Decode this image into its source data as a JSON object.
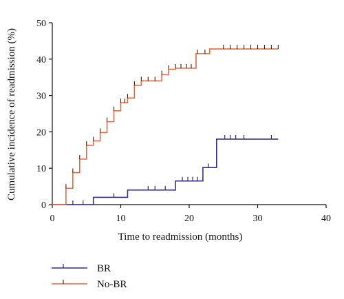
{
  "chart_data": {
    "type": "line",
    "subtype": "step (cumulative incidence)",
    "title": "",
    "xlabel": "Time to readmission (months)",
    "ylabel": "Cumulative incidence of readmission (%)",
    "xlim": [
      0,
      40
    ],
    "ylim": [
      0,
      50
    ],
    "xticks": [
      0,
      10,
      20,
      30,
      40
    ],
    "yticks": [
      0,
      10,
      20,
      30,
      40,
      50
    ],
    "grid": false,
    "legend_position": "bottom-left, below plot",
    "series": [
      {
        "name": "BR",
        "color": "#3c2d8c",
        "steps": [
          [
            0,
            0
          ],
          [
            6,
            2
          ],
          [
            11,
            4
          ],
          [
            18,
            6.5
          ],
          [
            22,
            10.2
          ],
          [
            24,
            18
          ]
        ],
        "end_x": 33,
        "censor_x": [
          3,
          4.5,
          9,
          14,
          15,
          16.5,
          19,
          19.8,
          20.5,
          21.2,
          22.8,
          25.2,
          26,
          26.8,
          28,
          32
        ]
      },
      {
        "name": "No-BR",
        "color": "#e8683a",
        "steps": [
          [
            0,
            0
          ],
          [
            2,
            4.5
          ],
          [
            3,
            8.8
          ],
          [
            4,
            12.5
          ],
          [
            5,
            16.3
          ],
          [
            6,
            17.5
          ],
          [
            7,
            19.8
          ],
          [
            8,
            22.8
          ],
          [
            9,
            25.8
          ],
          [
            10,
            28
          ],
          [
            11,
            29.3
          ],
          [
            12,
            32.8
          ],
          [
            13,
            34
          ],
          [
            16,
            35.7
          ],
          [
            17,
            37.2
          ],
          [
            18,
            37.5
          ],
          [
            21,
            41.5
          ],
          [
            23,
            42.8
          ]
        ],
        "end_x": 33,
        "censor_x": [
          2,
          3,
          4,
          5,
          6,
          7,
          8,
          9,
          10,
          10.6,
          11,
          12,
          13,
          14,
          15,
          16,
          17,
          18,
          18.8,
          19.6,
          20.3,
          21.2,
          22.3,
          25,
          26,
          27,
          28,
          29,
          30,
          31,
          32,
          33
        ]
      }
    ]
  }
}
